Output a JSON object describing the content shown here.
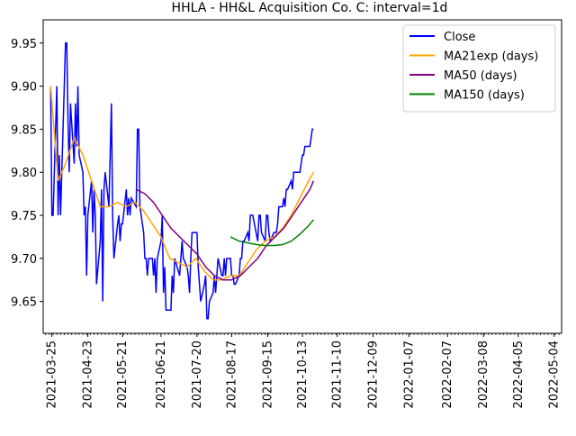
{
  "chart_data": {
    "type": "line",
    "title": "HHLA - HH&L Acquisition Co. C: interval=1d",
    "xlabel": "",
    "ylabel": "",
    "x_range": [
      "2021-03-18",
      "2022-05-10"
    ],
    "ylim": [
      9.613,
      9.977
    ],
    "grid": false,
    "legend_position": "top-right",
    "x_ticks": [
      "2021-03-25",
      "2021-04-23",
      "2021-05-21",
      "2021-06-21",
      "2021-07-20",
      "2021-08-17",
      "2021-09-15",
      "2021-10-13",
      "2021-11-10",
      "2021-12-09",
      "2022-01-07",
      "2022-02-07",
      "2022-03-08",
      "2022-04-05",
      "2022-05-04"
    ],
    "y_ticks": [
      9.65,
      9.7,
      9.75,
      9.8,
      9.85,
      9.9,
      9.95
    ],
    "series": [
      {
        "name": "Close",
        "color": "#0000ff",
        "points": [
          [
            "2021-03-24",
            9.9
          ],
          [
            "2021-03-25",
            9.75
          ],
          [
            "2021-03-26",
            9.75
          ],
          [
            "2021-03-29",
            9.9
          ],
          [
            "2021-03-30",
            9.75
          ],
          [
            "2021-03-31",
            9.82
          ],
          [
            "2021-04-01",
            9.75
          ],
          [
            "2021-04-05",
            9.95
          ],
          [
            "2021-04-06",
            9.95
          ],
          [
            "2021-04-07",
            9.86
          ],
          [
            "2021-04-08",
            9.8
          ],
          [
            "2021-04-09",
            9.88
          ],
          [
            "2021-04-12",
            9.81
          ],
          [
            "2021-04-13",
            9.88
          ],
          [
            "2021-04-14",
            9.83
          ],
          [
            "2021-04-15",
            9.9
          ],
          [
            "2021-04-16",
            9.82
          ],
          [
            "2021-04-19",
            9.8
          ],
          [
            "2021-04-20",
            9.75
          ],
          [
            "2021-04-21",
            9.76
          ],
          [
            "2021-04-22",
            9.68
          ],
          [
            "2021-04-23",
            9.75
          ],
          [
            "2021-04-26",
            9.79
          ],
          [
            "2021-04-27",
            9.73
          ],
          [
            "2021-04-28",
            9.78
          ],
          [
            "2021-04-29",
            9.75
          ],
          [
            "2021-04-30",
            9.67
          ],
          [
            "2021-05-03",
            9.72
          ],
          [
            "2021-05-04",
            9.78
          ],
          [
            "2021-05-05",
            9.65
          ],
          [
            "2021-05-06",
            9.78
          ],
          [
            "2021-05-07",
            9.8
          ],
          [
            "2021-05-10",
            9.76
          ],
          [
            "2021-05-11",
            9.82
          ],
          [
            "2021-05-12",
            9.88
          ],
          [
            "2021-05-13",
            9.75
          ],
          [
            "2021-05-14",
            9.7
          ],
          [
            "2021-05-17",
            9.74
          ],
          [
            "2021-05-18",
            9.75
          ],
          [
            "2021-05-19",
            9.72
          ],
          [
            "2021-05-20",
            9.74
          ],
          [
            "2021-05-21",
            9.74
          ],
          [
            "2021-05-24",
            9.78
          ],
          [
            "2021-05-25",
            9.75
          ],
          [
            "2021-05-26",
            9.77
          ],
          [
            "2021-05-27",
            9.75
          ],
          [
            "2021-05-28",
            9.77
          ],
          [
            "2021-06-01",
            9.76
          ],
          [
            "2021-06-02",
            9.85
          ],
          [
            "2021-06-03",
            9.85
          ],
          [
            "2021-06-04",
            9.76
          ],
          [
            "2021-06-07",
            9.73
          ],
          [
            "2021-06-08",
            9.7
          ],
          [
            "2021-06-09",
            9.7
          ],
          [
            "2021-06-10",
            9.68
          ],
          [
            "2021-06-11",
            9.7
          ],
          [
            "2021-06-14",
            9.7
          ],
          [
            "2021-06-15",
            9.68
          ],
          [
            "2021-06-16",
            9.7
          ],
          [
            "2021-06-17",
            9.66
          ],
          [
            "2021-06-18",
            9.7
          ],
          [
            "2021-06-21",
            9.72
          ],
          [
            "2021-06-22",
            9.75
          ],
          [
            "2021-06-23",
            9.66
          ],
          [
            "2021-06-24",
            9.69
          ],
          [
            "2021-06-25",
            9.64
          ],
          [
            "2021-06-28",
            9.64
          ],
          [
            "2021-06-29",
            9.64
          ],
          [
            "2021-06-30",
            9.68
          ],
          [
            "2021-07-01",
            9.66
          ],
          [
            "2021-07-02",
            9.7
          ],
          [
            "2021-07-06",
            9.68
          ],
          [
            "2021-07-07",
            9.7
          ],
          [
            "2021-07-08",
            9.72
          ],
          [
            "2021-07-09",
            9.7
          ],
          [
            "2021-07-12",
            9.69
          ],
          [
            "2021-07-13",
            9.68
          ],
          [
            "2021-07-14",
            9.66
          ],
          [
            "2021-07-15",
            9.7
          ],
          [
            "2021-07-16",
            9.73
          ],
          [
            "2021-07-19",
            9.73
          ],
          [
            "2021-07-20",
            9.73
          ],
          [
            "2021-07-21",
            9.69
          ],
          [
            "2021-07-22",
            9.67
          ],
          [
            "2021-07-23",
            9.65
          ],
          [
            "2021-07-26",
            9.67
          ],
          [
            "2021-07-27",
            9.68
          ],
          [
            "2021-07-28",
            9.63
          ],
          [
            "2021-07-29",
            9.63
          ],
          [
            "2021-07-30",
            9.65
          ],
          [
            "2021-08-02",
            9.66
          ],
          [
            "2021-08-03",
            9.68
          ],
          [
            "2021-08-04",
            9.66
          ],
          [
            "2021-08-05",
            9.68
          ],
          [
            "2021-08-06",
            9.7
          ],
          [
            "2021-08-09",
            9.68
          ],
          [
            "2021-08-10",
            9.68
          ],
          [
            "2021-08-11",
            9.7
          ],
          [
            "2021-08-12",
            9.68
          ],
          [
            "2021-08-13",
            9.7
          ],
          [
            "2021-08-16",
            9.7
          ],
          [
            "2021-08-17",
            9.68
          ],
          [
            "2021-08-18",
            9.68
          ],
          [
            "2021-08-19",
            9.67
          ],
          [
            "2021-08-20",
            9.67
          ],
          [
            "2021-08-23",
            9.68
          ],
          [
            "2021-08-24",
            9.7
          ],
          [
            "2021-08-25",
            9.7
          ],
          [
            "2021-08-26",
            9.72
          ],
          [
            "2021-08-27",
            9.72
          ],
          [
            "2021-08-30",
            9.73
          ],
          [
            "2021-08-31",
            9.72
          ],
          [
            "2021-09-01",
            9.75
          ],
          [
            "2021-09-02",
            9.75
          ],
          [
            "2021-09-03",
            9.75
          ],
          [
            "2021-09-07",
            9.72
          ],
          [
            "2021-09-08",
            9.75
          ],
          [
            "2021-09-09",
            9.75
          ],
          [
            "2021-09-10",
            9.73
          ],
          [
            "2021-09-13",
            9.72
          ],
          [
            "2021-09-14",
            9.75
          ],
          [
            "2021-09-15",
            9.75
          ],
          [
            "2021-09-16",
            9.73
          ],
          [
            "2021-09-17",
            9.72
          ],
          [
            "2021-09-20",
            9.73
          ],
          [
            "2021-09-21",
            9.73
          ],
          [
            "2021-09-22",
            9.73
          ],
          [
            "2021-09-23",
            9.74
          ],
          [
            "2021-09-24",
            9.76
          ],
          [
            "2021-09-27",
            9.76
          ],
          [
            "2021-09-28",
            9.77
          ],
          [
            "2021-09-29",
            9.76
          ],
          [
            "2021-09-30",
            9.78
          ],
          [
            "2021-10-01",
            9.78
          ],
          [
            "2021-10-04",
            9.79
          ],
          [
            "2021-10-05",
            9.78
          ],
          [
            "2021-10-06",
            9.8
          ],
          [
            "2021-10-07",
            9.8
          ],
          [
            "2021-10-08",
            9.8
          ],
          [
            "2021-10-11",
            9.8
          ],
          [
            "2021-10-12",
            9.81
          ],
          [
            "2021-10-13",
            9.82
          ],
          [
            "2021-10-14",
            9.82
          ],
          [
            "2021-10-15",
            9.83
          ],
          [
            "2021-10-18",
            9.83
          ],
          [
            "2021-10-19",
            9.83
          ],
          [
            "2021-10-20",
            9.84
          ],
          [
            "2021-10-21",
            9.85
          ],
          [
            "2021-10-22",
            9.85
          ]
        ]
      },
      {
        "name": "MA21exp (days)",
        "color": "#ffa500",
        "points": [
          [
            "2021-03-24",
            9.9
          ],
          [
            "2021-03-30",
            9.79
          ],
          [
            "2021-04-05",
            9.81
          ],
          [
            "2021-04-12",
            9.84
          ],
          [
            "2021-04-19",
            9.82
          ],
          [
            "2021-04-26",
            9.79
          ],
          [
            "2021-05-03",
            9.76
          ],
          [
            "2021-05-10",
            9.76
          ],
          [
            "2021-05-17",
            9.765
          ],
          [
            "2021-05-24",
            9.76
          ],
          [
            "2021-05-31",
            9.765
          ],
          [
            "2021-06-07",
            9.755
          ],
          [
            "2021-06-14",
            9.74
          ],
          [
            "2021-06-21",
            9.725
          ],
          [
            "2021-06-28",
            9.7
          ],
          [
            "2021-07-05",
            9.695
          ],
          [
            "2021-07-12",
            9.69
          ],
          [
            "2021-07-19",
            9.7
          ],
          [
            "2021-07-26",
            9.685
          ],
          [
            "2021-08-02",
            9.675
          ],
          [
            "2021-08-09",
            9.675
          ],
          [
            "2021-08-16",
            9.68
          ],
          [
            "2021-08-23",
            9.68
          ],
          [
            "2021-08-30",
            9.695
          ],
          [
            "2021-09-06",
            9.71
          ],
          [
            "2021-09-13",
            9.72
          ],
          [
            "2021-09-20",
            9.725
          ],
          [
            "2021-09-27",
            9.735
          ],
          [
            "2021-10-04",
            9.75
          ],
          [
            "2021-10-11",
            9.77
          ],
          [
            "2021-10-18",
            9.79
          ],
          [
            "2021-10-22",
            9.8
          ]
        ]
      },
      {
        "name": "MA50 (days)",
        "color": "#800080",
        "points": [
          [
            "2021-06-01",
            9.78
          ],
          [
            "2021-06-08",
            9.775
          ],
          [
            "2021-06-15",
            9.765
          ],
          [
            "2021-06-22",
            9.75
          ],
          [
            "2021-06-29",
            9.735
          ],
          [
            "2021-07-06",
            9.725
          ],
          [
            "2021-07-13",
            9.715
          ],
          [
            "2021-07-20",
            9.705
          ],
          [
            "2021-07-27",
            9.69
          ],
          [
            "2021-08-03",
            9.68
          ],
          [
            "2021-08-10",
            9.675
          ],
          [
            "2021-08-17",
            9.675
          ],
          [
            "2021-08-24",
            9.68
          ],
          [
            "2021-08-31",
            9.69
          ],
          [
            "2021-09-07",
            9.7
          ],
          [
            "2021-09-14",
            9.715
          ],
          [
            "2021-09-21",
            9.725
          ],
          [
            "2021-09-28",
            9.735
          ],
          [
            "2021-10-05",
            9.75
          ],
          [
            "2021-10-12",
            9.765
          ],
          [
            "2021-10-19",
            9.78
          ],
          [
            "2021-10-22",
            9.79
          ]
        ]
      },
      {
        "name": "MA150 (days)",
        "color": "#008000",
        "points": [
          [
            "2021-08-16",
            9.725
          ],
          [
            "2021-08-23",
            9.72
          ],
          [
            "2021-08-30",
            9.718
          ],
          [
            "2021-09-06",
            9.716
          ],
          [
            "2021-09-13",
            9.715
          ],
          [
            "2021-09-20",
            9.715
          ],
          [
            "2021-09-27",
            9.716
          ],
          [
            "2021-10-04",
            9.72
          ],
          [
            "2021-10-11",
            9.728
          ],
          [
            "2021-10-18",
            9.738
          ],
          [
            "2021-10-22",
            9.745
          ]
        ]
      }
    ]
  }
}
